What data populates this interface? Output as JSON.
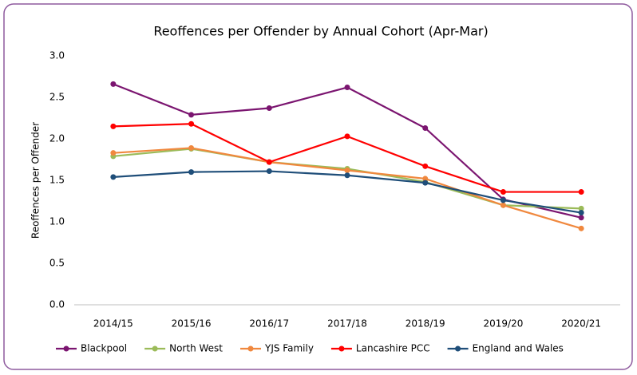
{
  "chart_data": {
    "type": "line",
    "title": "Reoffences per Offender by Annual Cohort (Apr-Mar)",
    "y_label": "Reoffences per Offender",
    "categories": [
      "2014/15",
      "2015/16",
      "2016/17",
      "2017/18",
      "2018/19",
      "2019/20",
      "2020/21"
    ],
    "series": [
      {
        "name": "Blackpool",
        "color": "#7b1570",
        "values": [
          2.66,
          2.29,
          2.37,
          2.62,
          2.13,
          1.27,
          1.05
        ]
      },
      {
        "name": "North West",
        "color": "#9bbb59",
        "values": [
          1.79,
          1.88,
          1.72,
          1.64,
          1.48,
          1.2,
          1.16
        ]
      },
      {
        "name": "YJS Family",
        "color": "#f0883e",
        "values": [
          1.83,
          1.89,
          1.72,
          1.62,
          1.52,
          1.2,
          0.92
        ]
      },
      {
        "name": "Lancashire PCC",
        "color": "#ff0000",
        "values": [
          2.15,
          2.18,
          1.72,
          2.03,
          1.67,
          1.36,
          1.36
        ]
      },
      {
        "name": "England and Wales",
        "color": "#1f4e79",
        "values": [
          1.54,
          1.6,
          1.61,
          1.56,
          1.47,
          1.26,
          1.11
        ]
      }
    ],
    "ylim": [
      0,
      3
    ],
    "yticks": [
      {
        "value": 0,
        "label": "0.0"
      },
      0.5,
      {
        "value": 1,
        "label": "1.0"
      },
      1.5,
      {
        "value": 2,
        "label": "2.0"
      },
      2.5,
      {
        "value": 3,
        "label": "3.0"
      }
    ],
    "grid": false,
    "legend": "bottom"
  }
}
